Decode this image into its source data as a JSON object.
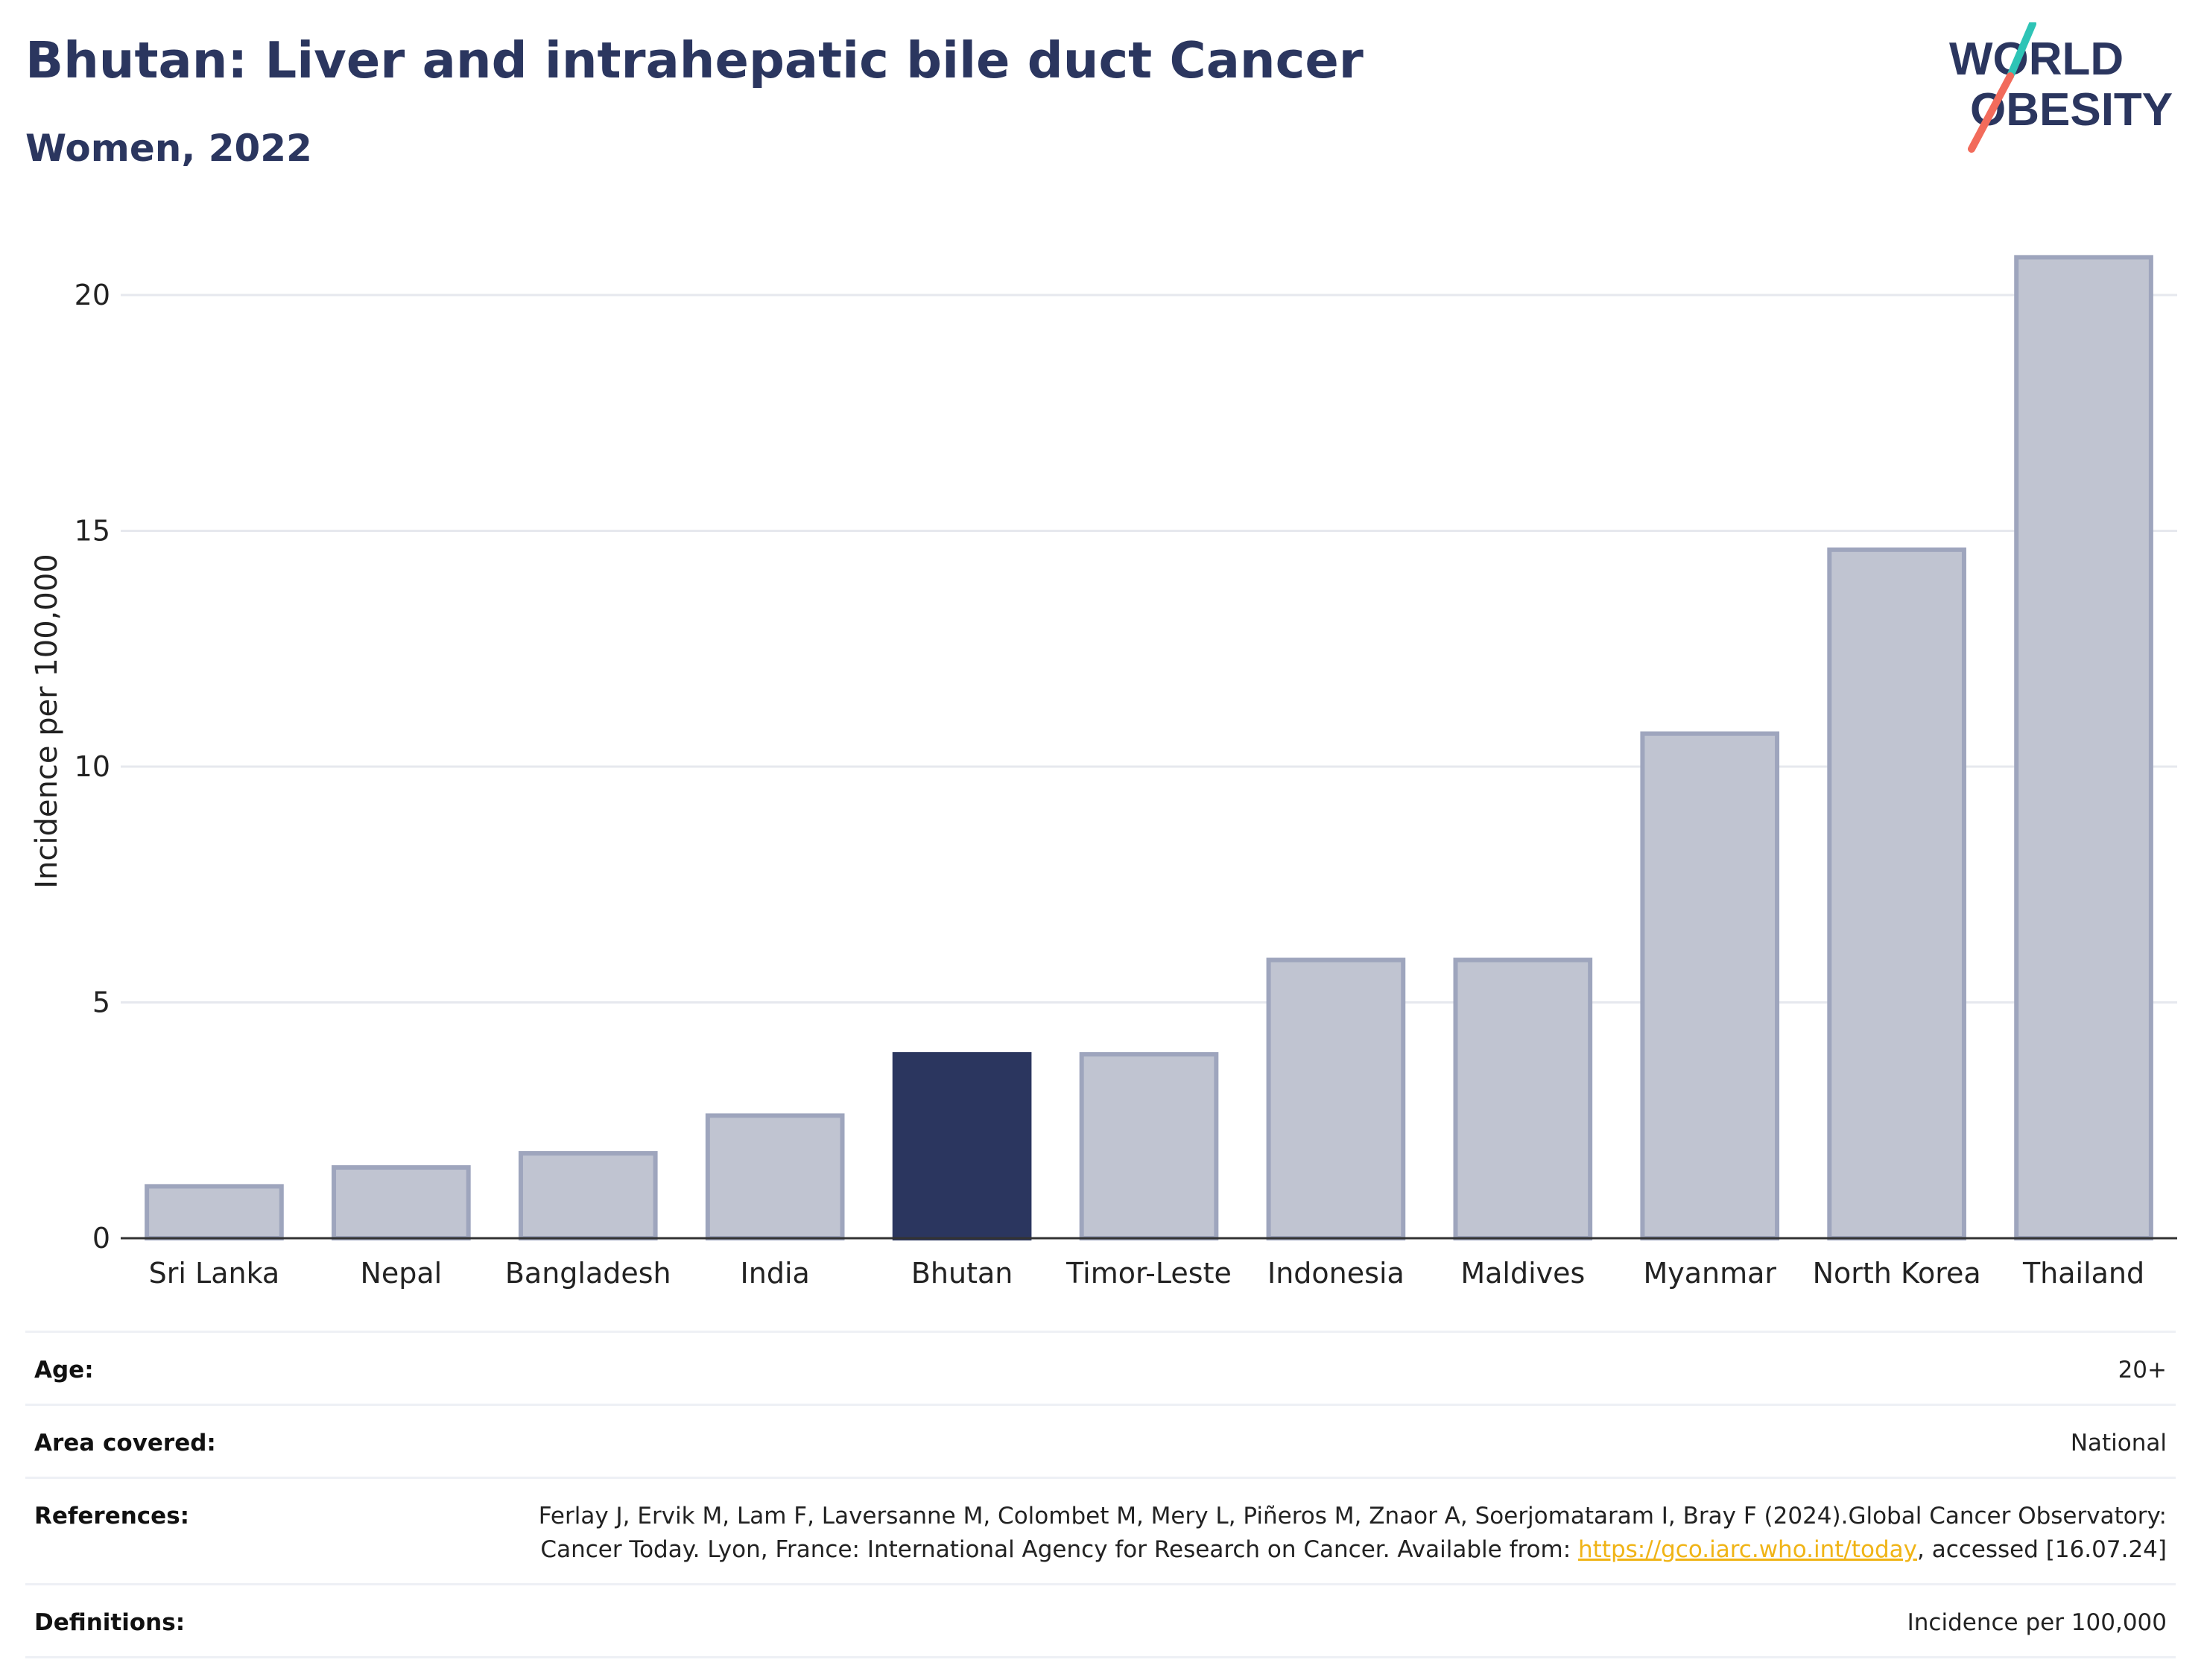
{
  "header": {
    "title": "Bhutan: Liver and intrahepatic bile duct Cancer",
    "subtitle": "Women, 2022"
  },
  "logo": {
    "line1": "WORLD",
    "line2": "OBESITY",
    "colors": {
      "text": "#2b365f",
      "slash_top": "#2ec4b6",
      "slash_bottom": "#f26b5b"
    }
  },
  "chart_data": {
    "type": "bar",
    "categories": [
      "Sri Lanka",
      "Nepal",
      "Bangladesh",
      "India",
      "Bhutan",
      "Timor-Leste",
      "Indonesia",
      "Maldives",
      "Myanmar",
      "North Korea",
      "Thailand"
    ],
    "values": [
      1.1,
      1.5,
      1.8,
      2.6,
      3.9,
      3.9,
      5.9,
      5.9,
      10.7,
      14.6,
      20.8
    ],
    "highlight": "Bhutan",
    "ylabel": "Incidence per 100,000",
    "xlabel": "",
    "ylim": [
      0,
      22
    ],
    "yticks": [
      0,
      5,
      10,
      15,
      20
    ],
    "grid": true,
    "colors": {
      "bar": "#c0c4d1",
      "bar_edge": "#9ea5bd",
      "highlight": "#2b365f",
      "grid": "#e6e8ee",
      "axis": "#333333"
    }
  },
  "meta": {
    "age_label": "Age:",
    "age_value": "20+",
    "area_label": "Area covered:",
    "area_value": "National",
    "references_label": "References:",
    "references_text_1": "Ferlay J, Ervik M, Lam F, Laversanne M, Colombet M, Mery L, Piñeros M, Znaor A, Soerjomataram I, Bray F (2024).Global Cancer Observatory: Cancer Today. Lyon, France: International Agency for Research on Cancer. Available from: ",
    "references_link": "https://gco.iarc.who.int/today",
    "references_text_2": ", accessed [16.07.24]",
    "definitions_label": "Definitions:",
    "definitions_value": "Incidence per 100,000"
  }
}
